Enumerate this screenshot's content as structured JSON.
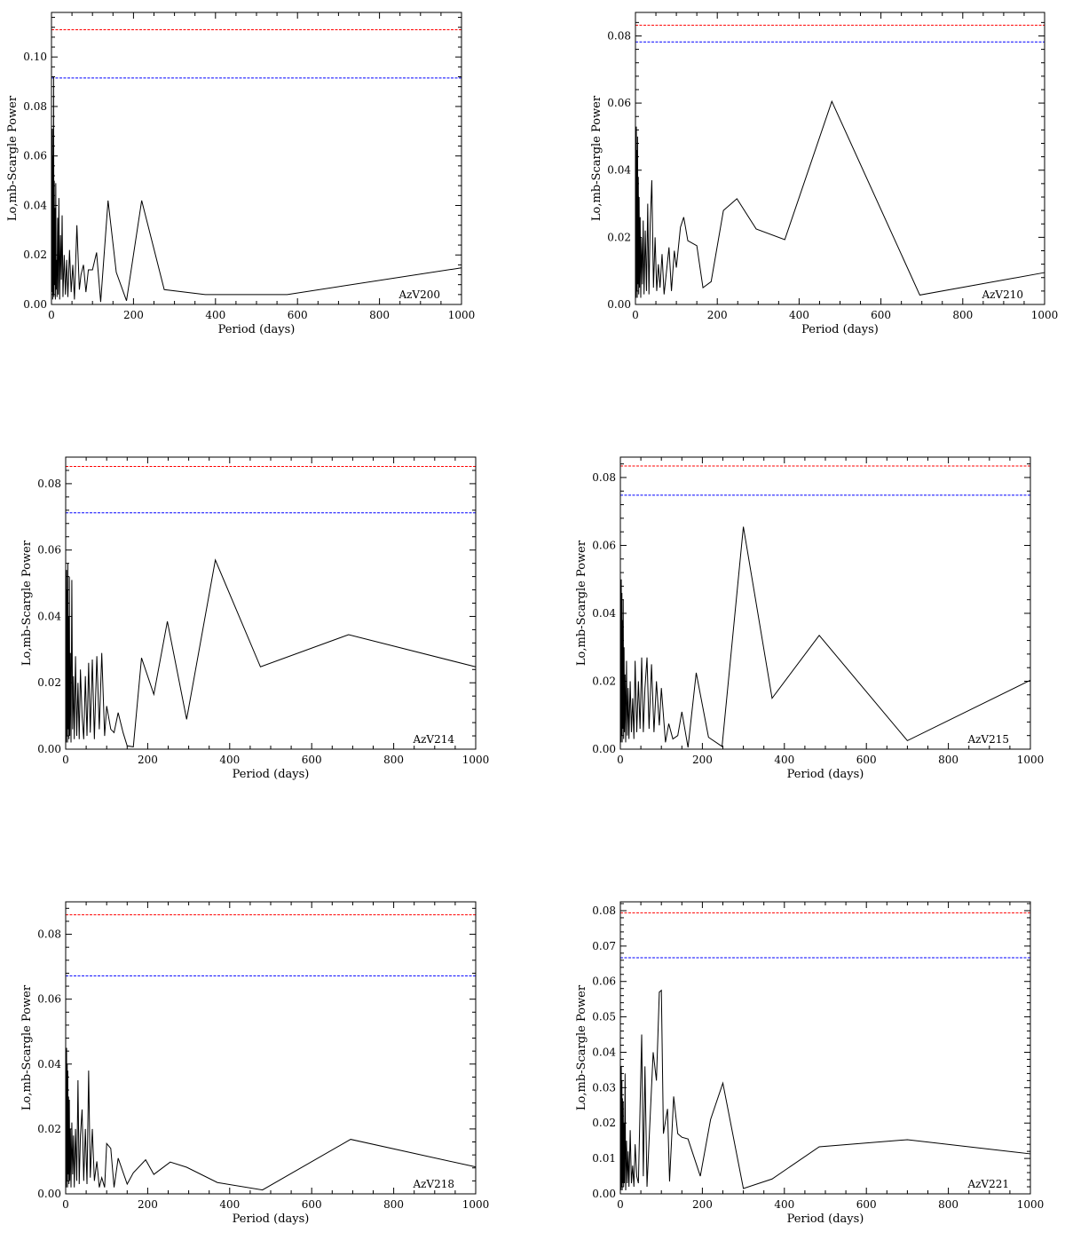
{
  "chart_data": [
    {
      "type": "line",
      "star_label": "AzV200",
      "xlabel": "Period (days)",
      "ylabel": "Lo,mb-Scargle Power",
      "xlim": [
        0,
        1000
      ],
      "ylim": [
        0,
        0.118
      ],
      "xticks": [
        0,
        200,
        400,
        600,
        800,
        1000
      ],
      "xtick_labels": [
        "0",
        "200",
        "400",
        "600",
        "800",
        "1000"
      ],
      "yticks": [
        0.0,
        0.02,
        0.04,
        0.06,
        0.08,
        0.1
      ],
      "ytick_labels": [
        "0.00",
        "0.02",
        "0.04",
        "0.06",
        "0.08",
        "0.10"
      ],
      "thresholds": [
        {
          "value": 0.111,
          "color": "#ff0000"
        },
        {
          "value": 0.0915,
          "color": "#0000ff"
        }
      ],
      "series": [
        {
          "x": [
            0.5,
            1.5,
            2.2,
            3.0,
            3.8,
            4.5,
            5.2,
            6.0,
            6.8,
            7.5,
            8.5,
            9.5,
            10.5,
            11.5,
            12.5,
            13.5,
            15,
            16.5,
            18,
            20,
            22,
            24,
            26,
            28,
            31,
            34,
            37,
            40,
            44,
            48,
            52,
            56,
            62,
            68,
            72,
            78,
            84,
            90,
            100,
            110,
            120,
            138,
            158,
            183,
            220,
            275,
            375,
            575,
            1000
          ],
          "y": [
            0.05,
            0.005,
            0.071,
            0.002,
            0.06,
            0.004,
            0.092,
            0.003,
            0.05,
            0.008,
            0.039,
            0.002,
            0.049,
            0.006,
            0.018,
            0.003,
            0.035,
            0.004,
            0.043,
            0.002,
            0.028,
            0.01,
            0.036,
            0.003,
            0.02,
            0.004,
            0.018,
            0.003,
            0.022,
            0.005,
            0.016,
            0.002,
            0.032,
            0.006,
            0.012,
            0.016,
            0.005,
            0.014,
            0.014,
            0.021,
            0.001,
            0.042,
            0.013,
            0.0015,
            0.042,
            0.006,
            0.004,
            0.004,
            0.0148
          ]
        }
      ]
    },
    {
      "type": "line",
      "star_label": "AzV210",
      "xlabel": "Period (days)",
      "ylabel": "Lo,mb-Scargle Power",
      "xlim": [
        0,
        1000
      ],
      "ylim": [
        0,
        0.087
      ],
      "xticks": [
        0,
        200,
        400,
        600,
        800,
        1000
      ],
      "xtick_labels": [
        "0",
        "200",
        "400",
        "600",
        "800",
        "1000"
      ],
      "yticks": [
        0.0,
        0.02,
        0.04,
        0.06,
        0.08
      ],
      "ytick_labels": [
        "0.00",
        "0.02",
        "0.04",
        "0.06",
        "0.08"
      ],
      "thresholds": [
        {
          "value": 0.0832,
          "color": "#ff0000"
        },
        {
          "value": 0.0782,
          "color": "#0000ff"
        }
      ],
      "series": [
        {
          "x": [
            0.5,
            1.5,
            2.2,
            3.0,
            3.8,
            4.5,
            5.2,
            6.0,
            7.0,
            8.0,
            9.0,
            10.0,
            11.5,
            13,
            15,
            17,
            19,
            21,
            24,
            27,
            30,
            33,
            36,
            40,
            44,
            48,
            52,
            56,
            60,
            65,
            70,
            76,
            82,
            88,
            95,
            100,
            110,
            118,
            128,
            150,
            165,
            185,
            215,
            248,
            295,
            365,
            480,
            695,
            1000
          ],
          "y": [
            0.03,
            0.002,
            0.053,
            0.004,
            0.046,
            0.002,
            0.05,
            0.006,
            0.038,
            0.003,
            0.032,
            0.005,
            0.026,
            0.002,
            0.02,
            0.006,
            0.025,
            0.003,
            0.022,
            0.004,
            0.03,
            0.003,
            0.024,
            0.037,
            0.005,
            0.02,
            0.004,
            0.012,
            0.005,
            0.015,
            0.003,
            0.01,
            0.017,
            0.004,
            0.016,
            0.011,
            0.023,
            0.026,
            0.019,
            0.0175,
            0.005,
            0.0068,
            0.028,
            0.0315,
            0.0225,
            0.0193,
            0.0605,
            0.0028,
            0.0095
          ]
        }
      ]
    },
    {
      "type": "line",
      "star_label": "AzV214",
      "xlabel": "Period (days)",
      "ylabel": "Lo,mb-Scargle Power",
      "xlim": [
        0,
        1000
      ],
      "ylim": [
        0,
        0.088
      ],
      "xticks": [
        0,
        200,
        400,
        600,
        800,
        1000
      ],
      "xtick_labels": [
        "0",
        "200",
        "400",
        "600",
        "800",
        "1000"
      ],
      "yticks": [
        0.0,
        0.02,
        0.04,
        0.06,
        0.08
      ],
      "ytick_labels": [
        "0.00",
        "0.02",
        "0.04",
        "0.06",
        "0.08"
      ],
      "thresholds": [
        {
          "value": 0.0852,
          "color": "#ff0000"
        },
        {
          "value": 0.0712,
          "color": "#0000ff"
        }
      ],
      "series": [
        {
          "x": [
            0.5,
            1.5,
            2.2,
            3.0,
            3.8,
            4.5,
            5.2,
            6.0,
            7.0,
            8.0,
            9.0,
            10.0,
            11.5,
            13,
            15,
            17,
            19,
            21,
            24,
            27,
            30,
            33,
            36,
            40,
            44,
            48,
            52,
            56,
            60,
            65,
            70,
            76,
            82,
            88,
            95,
            100,
            110,
            118,
            128,
            140,
            150,
            165,
            185,
            215,
            248,
            295,
            365,
            475,
            690,
            1000
          ],
          "y": [
            0.031,
            0.002,
            0.054,
            0.004,
            0.048,
            0.002,
            0.056,
            0.006,
            0.04,
            0.003,
            0.052,
            0.004,
            0.029,
            0.002,
            0.051,
            0.006,
            0.022,
            0.003,
            0.028,
            0.004,
            0.02,
            0.003,
            0.024,
            0.01,
            0.003,
            0.022,
            0.004,
            0.026,
            0.005,
            0.027,
            0.003,
            0.028,
            0.006,
            0.029,
            0.004,
            0.013,
            0.006,
            0.005,
            0.011,
            0.005,
            0.001,
            0.0007,
            0.0275,
            0.0165,
            0.0385,
            0.009,
            0.057,
            0.0248,
            0.0345,
            0.0248
          ]
        }
      ]
    },
    {
      "type": "line",
      "star_label": "AzV215",
      "xlabel": "Period (days)",
      "ylabel": "Lo,mb-Scargle Power",
      "xlim": [
        0,
        1000
      ],
      "ylim": [
        0,
        0.086
      ],
      "xticks": [
        0,
        200,
        400,
        600,
        800,
        1000
      ],
      "xtick_labels": [
        "0",
        "200",
        "400",
        "600",
        "800",
        "1000"
      ],
      "yticks": [
        0.0,
        0.02,
        0.04,
        0.06,
        0.08
      ],
      "ytick_labels": [
        "0.00",
        "0.02",
        "0.04",
        "0.06",
        "0.08"
      ],
      "thresholds": [
        {
          "value": 0.0834,
          "color": "#ff0000"
        },
        {
          "value": 0.0748,
          "color": "#0000ff"
        }
      ],
      "series": [
        {
          "x": [
            0.5,
            1.5,
            2.2,
            3.0,
            3.8,
            4.5,
            5.2,
            6.0,
            7.0,
            8.0,
            9.0,
            10.0,
            11.5,
            13,
            15,
            17,
            19,
            21,
            24,
            27,
            30,
            33,
            36,
            40,
            44,
            48,
            52,
            56,
            60,
            65,
            70,
            76,
            82,
            88,
            95,
            100,
            110,
            118,
            128,
            140,
            150,
            165,
            185,
            215,
            248,
            300,
            370,
            485,
            700,
            1000
          ],
          "y": [
            0.02,
            0.002,
            0.05,
            0.004,
            0.046,
            0.002,
            0.038,
            0.006,
            0.044,
            0.003,
            0.03,
            0.005,
            0.022,
            0.002,
            0.026,
            0.004,
            0.018,
            0.003,
            0.02,
            0.005,
            0.015,
            0.003,
            0.026,
            0.005,
            0.02,
            0.006,
            0.027,
            0.005,
            0.018,
            0.027,
            0.006,
            0.025,
            0.005,
            0.02,
            0.007,
            0.018,
            0.002,
            0.0075,
            0.003,
            0.004,
            0.011,
            0.0005,
            0.0225,
            0.0035,
            0.0008,
            0.0655,
            0.015,
            0.0335,
            0.0025,
            0.0203
          ]
        }
      ]
    },
    {
      "type": "line",
      "star_label": "AzV218",
      "xlabel": "Period (days)",
      "ylabel": "Lo,mb-Scargle Power",
      "xlim": [
        0,
        1000
      ],
      "ylim": [
        0,
        0.09
      ],
      "xticks": [
        0,
        200,
        400,
        600,
        800,
        1000
      ],
      "xtick_labels": [
        "0",
        "200",
        "400",
        "600",
        "800",
        "1000"
      ],
      "yticks": [
        0.0,
        0.02,
        0.04,
        0.06,
        0.08
      ],
      "ytick_labels": [
        "0.00",
        "0.02",
        "0.04",
        "0.06",
        "0.08"
      ],
      "thresholds": [
        {
          "value": 0.086,
          "color": "#ff0000"
        },
        {
          "value": 0.0672,
          "color": "#0000ff"
        }
      ],
      "series": [
        {
          "x": [
            0.5,
            1.5,
            2.2,
            3.0,
            3.8,
            4.5,
            5.2,
            6.0,
            7.0,
            8.0,
            9.0,
            10.0,
            11.5,
            13,
            15,
            17,
            19,
            21,
            24,
            27,
            30,
            33,
            36,
            40,
            44,
            48,
            52,
            56,
            60,
            65,
            70,
            76,
            82,
            88,
            95,
            100,
            110,
            118,
            128,
            150,
            165,
            195,
            215,
            255,
            295,
            370,
            480,
            695,
            1000
          ],
          "y": [
            0.03,
            0.002,
            0.045,
            0.004,
            0.04,
            0.002,
            0.038,
            0.006,
            0.03,
            0.003,
            0.029,
            0.004,
            0.02,
            0.002,
            0.022,
            0.006,
            0.018,
            0.002,
            0.02,
            0.004,
            0.035,
            0.003,
            0.018,
            0.026,
            0.004,
            0.02,
            0.003,
            0.038,
            0.005,
            0.02,
            0.004,
            0.01,
            0.002,
            0.005,
            0.002,
            0.0155,
            0.014,
            0.002,
            0.011,
            0.003,
            0.0065,
            0.0105,
            0.006,
            0.0098,
            0.0082,
            0.0035,
            0.0012,
            0.0168,
            0.0083
          ]
        }
      ]
    },
    {
      "type": "line",
      "star_label": "AzV221",
      "xlabel": "Period (days)",
      "ylabel": "Lo,mb-Scargle Power",
      "xlim": [
        0,
        1000
      ],
      "ylim": [
        0,
        0.0825
      ],
      "xticks": [
        0,
        200,
        400,
        600,
        800,
        1000
      ],
      "xtick_labels": [
        "0",
        "200",
        "400",
        "600",
        "800",
        "1000"
      ],
      "yticks": [
        0.0,
        0.01,
        0.02,
        0.03,
        0.04,
        0.05,
        0.06,
        0.07,
        0.08
      ],
      "ytick_labels": [
        "0.00",
        "0.01",
        "0.02",
        "0.03",
        "0.04",
        "0.05",
        "0.06",
        "0.07",
        "0.08"
      ],
      "thresholds": [
        {
          "value": 0.0794,
          "color": "#ff0000"
        },
        {
          "value": 0.0667,
          "color": "#0000ff"
        }
      ],
      "series": [
        {
          "x": [
            0.5,
            1.5,
            2.2,
            3.0,
            3.8,
            4.5,
            5.2,
            6.0,
            7.0,
            8.0,
            9.0,
            10.0,
            11.5,
            13,
            15,
            17,
            19,
            21,
            24,
            27,
            30,
            33,
            36,
            40,
            44,
            48,
            52,
            56,
            60,
            65,
            70,
            80,
            88,
            95,
            100,
            105,
            115,
            120,
            130,
            140,
            150,
            165,
            195,
            220,
            250,
            300,
            370,
            485,
            700,
            1000
          ],
          "y": [
            0.02,
            0.001,
            0.036,
            0.002,
            0.032,
            0.001,
            0.027,
            0.003,
            0.026,
            0.002,
            0.02,
            0.003,
            0.034,
            0.001,
            0.015,
            0.003,
            0.012,
            0.002,
            0.018,
            0.003,
            0.008,
            0.002,
            0.014,
            0.005,
            0.003,
            0.024,
            0.045,
            0.005,
            0.036,
            0.002,
            0.015,
            0.04,
            0.032,
            0.057,
            0.0575,
            0.017,
            0.024,
            0.0035,
            0.0275,
            0.017,
            0.016,
            0.0155,
            0.005,
            0.021,
            0.0313,
            0.0015,
            0.0042,
            0.0133,
            0.0153,
            0.0113
          ]
        }
      ]
    }
  ]
}
